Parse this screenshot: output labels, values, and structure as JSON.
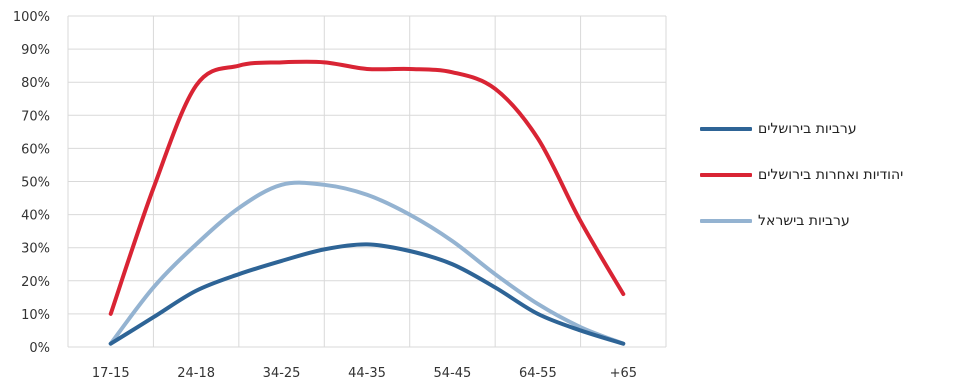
{
  "chart_data": {
    "type": "line",
    "title": "",
    "xlabel": "",
    "ylabel": "",
    "categories": [
      "17-15",
      "24-18",
      "34-25",
      "44-35",
      "54-45",
      "64-55",
      "+65"
    ],
    "y_ticks": [
      "0%",
      "10%",
      "20%",
      "30%",
      "40%",
      "50%",
      "60%",
      "70%",
      "80%",
      "90%",
      "100%"
    ],
    "ylim": [
      0,
      100
    ],
    "grid": true,
    "legend_position": "right",
    "smooth": true,
    "series": [
      {
        "name": "ערביות בירושלים",
        "color": "#2e6496",
        "points": [
          [
            0,
            1
          ],
          [
            0.5,
            9
          ],
          [
            1,
            17
          ],
          [
            1.5,
            22
          ],
          [
            2,
            26
          ],
          [
            2.5,
            29.5
          ],
          [
            3,
            31
          ],
          [
            3.5,
            29
          ],
          [
            4,
            25
          ],
          [
            4.5,
            18
          ],
          [
            5,
            10
          ],
          [
            5.5,
            5
          ],
          [
            6,
            1
          ]
        ]
      },
      {
        "name": "יהודיות ואחרות בירושלים",
        "color": "#d92434",
        "points": [
          [
            0,
            10
          ],
          [
            0.5,
            48
          ],
          [
            1,
            79
          ],
          [
            1.5,
            85
          ],
          [
            2,
            86
          ],
          [
            2.5,
            86
          ],
          [
            3,
            84
          ],
          [
            3.5,
            84
          ],
          [
            4,
            83
          ],
          [
            4.5,
            78
          ],
          [
            5,
            63
          ],
          [
            5.5,
            38
          ],
          [
            6,
            16
          ]
        ]
      },
      {
        "name": "ערביות בישראל",
        "color": "#94b3d1",
        "points": [
          [
            0,
            1
          ],
          [
            0.5,
            18
          ],
          [
            1,
            31
          ],
          [
            1.5,
            42
          ],
          [
            2,
            49
          ],
          [
            2.5,
            49
          ],
          [
            3,
            46
          ],
          [
            3.5,
            40
          ],
          [
            4,
            32
          ],
          [
            4.5,
            22
          ],
          [
            5,
            13
          ],
          [
            5.5,
            6
          ],
          [
            6,
            1
          ]
        ]
      }
    ]
  }
}
